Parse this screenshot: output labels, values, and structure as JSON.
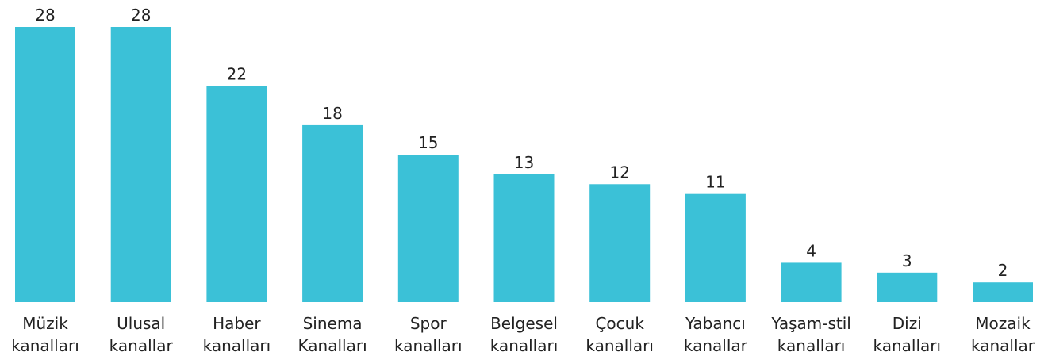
{
  "chart_data": {
    "type": "bar",
    "categories": [
      "Müzik\nkanalları",
      "Ulusal\nkanallar",
      "Haber\nkanalları",
      "Sinema\nKanalları",
      "Spor\nkanalları",
      "Belgesel\nkanalları",
      "Çocuk\nkanalları",
      "Yabancı\nkanallar",
      "Yaşam-stil\nkanalları",
      "Dizi\nkanalları",
      "Mozaik\nkanallar"
    ],
    "values": [
      28,
      28,
      22,
      18,
      15,
      13,
      12,
      11,
      4,
      3,
      2
    ],
    "color": "#3bc1d7",
    "ylim": [
      0,
      28
    ]
  }
}
